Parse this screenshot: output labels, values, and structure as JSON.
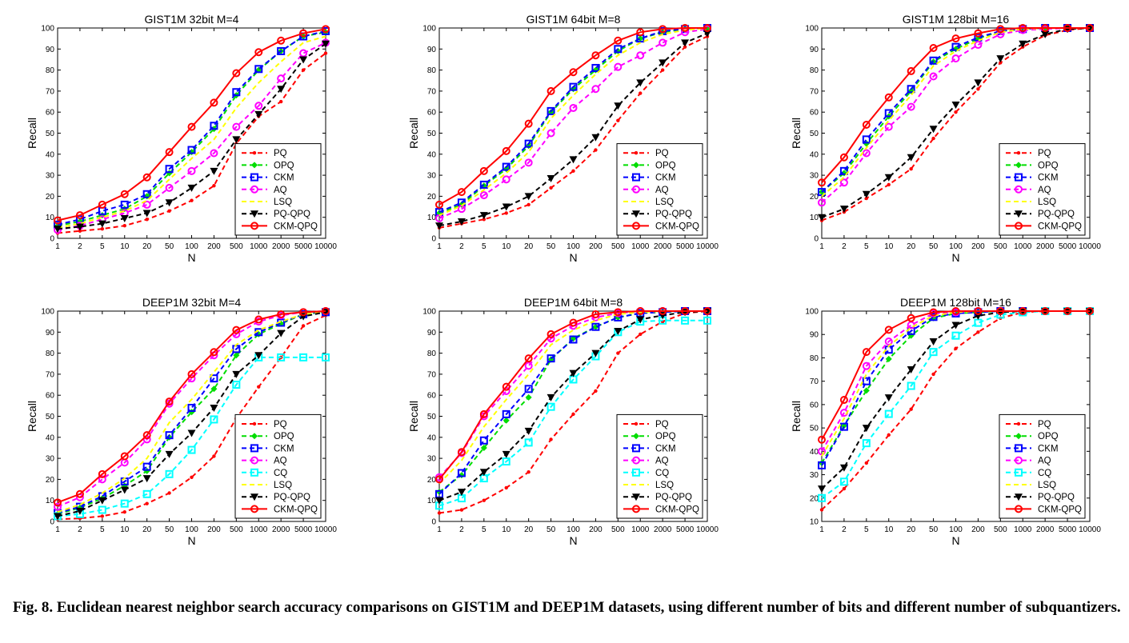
{
  "figure": {
    "caption": "Fig. 8. Euclidean nearest neighbor search accuracy comparisons on GIST1M and DEEP1M datasets, using different number of bits and different number of subquantizers."
  },
  "series_styles": {
    "PQ": {
      "color": "#ff0000",
      "marker": "dot",
      "dash": true
    },
    "OPQ": {
      "color": "#00dd00",
      "marker": "diamond",
      "dash": true
    },
    "CKM": {
      "color": "#0000ff",
      "marker": "square",
      "dash": true
    },
    "AQ": {
      "color": "#ff00ff",
      "marker": "circle",
      "dash": true
    },
    "CQ": {
      "color": "#00ffff",
      "marker": "square",
      "dash": true
    },
    "LSQ": {
      "color": "#ffff00",
      "marker": "none",
      "dash": true
    },
    "PQ-QPQ": {
      "color": "#000000",
      "marker": "triangle-down",
      "dash": true
    },
    "CKM-QPQ": {
      "color": "#ff0000",
      "marker": "circle",
      "dash": false
    }
  },
  "chart_data": [
    {
      "type": "line",
      "title": "GIST1M 32bit M=4",
      "xlabel": "N",
      "ylabel": "Recall",
      "ylim": [
        0,
        100
      ],
      "yticks": [
        "0",
        "10",
        "20",
        "30",
        "40",
        "50",
        "60",
        "70",
        "80",
        "90",
        "100"
      ],
      "x": [
        "1",
        "2",
        "5",
        "10",
        "20",
        "50",
        "100",
        "200",
        "500",
        "1000",
        "2000",
        "5000",
        "10000"
      ],
      "legend": "bottom-right",
      "series": [
        {
          "name": "PQ",
          "values": [
            2.5,
            3.5,
            4.5,
            6,
            9,
            13,
            18,
            25,
            45,
            58,
            65,
            80,
            88
          ]
        },
        {
          "name": "OPQ",
          "values": [
            6,
            8,
            11,
            14,
            20,
            31,
            41,
            52,
            68,
            80,
            89,
            96,
            98
          ]
        },
        {
          "name": "CKM",
          "values": [
            6.5,
            9,
            13,
            16,
            21,
            33,
            42,
            53.5,
            69.5,
            80.5,
            89,
            96,
            98.5
          ]
        },
        {
          "name": "AQ",
          "values": [
            4,
            6,
            9,
            12,
            16,
            24,
            32,
            40.5,
            53,
            63,
            76,
            88,
            93
          ]
        },
        {
          "name": "LSQ",
          "values": [
            5,
            7,
            10,
            13,
            18,
            28,
            38,
            47,
            62,
            74,
            84,
            93,
            96
          ]
        },
        {
          "name": "PQ-QPQ",
          "values": [
            4.5,
            5.5,
            7,
            9.5,
            12,
            17,
            24,
            32,
            47,
            59,
            71,
            85,
            92.5
          ]
        },
        {
          "name": "CKM-QPQ",
          "values": [
            8.5,
            11,
            16,
            21,
            29,
            41,
            53,
            64.5,
            78.5,
            88.5,
            94,
            97.5,
            99.5
          ]
        }
      ]
    },
    {
      "type": "line",
      "title": "GIST1M 64bit M=8",
      "xlabel": "N",
      "ylabel": "Recall",
      "ylim": [
        0,
        100
      ],
      "yticks": [
        "0",
        "10",
        "20",
        "30",
        "40",
        "50",
        "60",
        "70",
        "80",
        "90",
        "100"
      ],
      "x": [
        "1",
        "2",
        "5",
        "10",
        "20",
        "50",
        "100",
        "200",
        "500",
        "1000",
        "2000",
        "5000",
        "10000"
      ],
      "legend": "bottom-right",
      "series": [
        {
          "name": "PQ",
          "values": [
            5,
            7,
            9,
            12,
            16,
            24,
            32,
            42,
            56,
            69,
            80,
            91,
            96
          ]
        },
        {
          "name": "OPQ",
          "values": [
            12,
            16,
            25,
            33,
            44,
            60,
            71,
            80,
            89,
            95,
            98,
            99.5,
            100
          ]
        },
        {
          "name": "CKM",
          "values": [
            12.5,
            17,
            25.5,
            34,
            45,
            60.5,
            72,
            81,
            90,
            95,
            98.5,
            99.5,
            100
          ]
        },
        {
          "name": "AQ",
          "values": [
            9.5,
            14,
            20.5,
            28,
            36,
            50,
            62,
            71,
            81.5,
            87,
            93,
            98,
            99.5
          ]
        },
        {
          "name": "LSQ",
          "values": [
            11,
            15.5,
            23,
            31,
            41,
            57,
            68,
            78,
            87,
            93,
            97,
            99,
            100
          ]
        },
        {
          "name": "PQ-QPQ",
          "values": [
            6,
            8,
            11,
            15,
            20,
            28.5,
            37.5,
            48,
            63,
            74,
            83.5,
            93,
            97.5
          ]
        },
        {
          "name": "CKM-QPQ",
          "values": [
            16,
            22,
            32,
            41.5,
            54.5,
            70,
            79,
            87,
            94,
            98,
            99.5,
            100,
            100
          ]
        }
      ]
    },
    {
      "type": "line",
      "title": "GIST1M 128bit M=16",
      "xlabel": "N",
      "ylabel": "Recall",
      "ylim": [
        0,
        100
      ],
      "yticks": [
        "0",
        "10",
        "20",
        "30",
        "40",
        "50",
        "60",
        "70",
        "80",
        "90",
        "100"
      ],
      "x": [
        "1",
        "2",
        "5",
        "10",
        "20",
        "50",
        "100",
        "200",
        "500",
        "1000",
        "2000",
        "5000",
        "10000"
      ],
      "legend": "bottom-right",
      "series": [
        {
          "name": "PQ",
          "values": [
            8.5,
            12.5,
            19,
            25.5,
            33,
            47.5,
            60,
            71,
            83.5,
            91,
            96.5,
            99,
            100
          ]
        },
        {
          "name": "OPQ",
          "values": [
            22,
            31,
            45,
            58,
            70,
            84,
            90,
            95,
            98.5,
            99.5,
            100,
            100,
            100
          ]
        },
        {
          "name": "CKM",
          "values": [
            22,
            32,
            47,
            59.5,
            71,
            84.5,
            91,
            95.5,
            98.5,
            99.5,
            100,
            100,
            100
          ]
        },
        {
          "name": "AQ",
          "values": [
            17,
            26.5,
            40.5,
            53,
            62.5,
            77,
            85.5,
            92,
            97,
            99,
            99.5,
            100,
            100
          ]
        },
        {
          "name": "LSQ",
          "values": [
            20,
            29,
            43,
            56,
            68,
            82,
            89,
            94,
            98,
            99.5,
            100,
            100,
            100
          ]
        },
        {
          "name": "PQ-QPQ",
          "values": [
            10,
            14,
            21,
            29,
            38.5,
            52,
            63.5,
            74,
            85.5,
            92.5,
            97,
            99.5,
            100
          ]
        },
        {
          "name": "CKM-QPQ",
          "values": [
            26.5,
            38.5,
            54,
            67,
            79.5,
            90.5,
            95,
            97.5,
            99.5,
            100,
            100,
            100,
            100
          ]
        }
      ]
    },
    {
      "type": "line",
      "title": "DEEP1M 32bit M=4",
      "xlabel": "N",
      "ylabel": "Recall",
      "ylim": [
        0,
        100
      ],
      "yticks": [
        "0",
        "10",
        "20",
        "30",
        "40",
        "50",
        "60",
        "70",
        "80",
        "90",
        "100"
      ],
      "x": [
        "1",
        "2",
        "5",
        "10",
        "20",
        "50",
        "100",
        "200",
        "500",
        "1000",
        "2000",
        "5000",
        "10000"
      ],
      "legend": "bottom-right",
      "series": [
        {
          "name": "PQ",
          "values": [
            1,
            1.5,
            2.5,
            4.5,
            8.5,
            13.5,
            21,
            31,
            49,
            64,
            78,
            93,
            98
          ]
        },
        {
          "name": "OPQ",
          "values": [
            3.5,
            6.5,
            11,
            17,
            24,
            40,
            52,
            63,
            79,
            89,
            94,
            98.5,
            99.5
          ]
        },
        {
          "name": "CKM",
          "values": [
            4,
            7,
            12,
            19,
            26,
            41,
            54,
            68,
            82,
            90,
            94.5,
            98.5,
            99.5
          ]
        },
        {
          "name": "AQ",
          "values": [
            7,
            11.5,
            20,
            28,
            39,
            56,
            68,
            79,
            89,
            95,
            98,
            99.5,
            100
          ]
        },
        {
          "name": "CQ",
          "values": [
            2.5,
            3.5,
            5.5,
            8.5,
            13,
            22.5,
            34,
            48.5,
            65,
            78,
            78,
            78,
            78
          ]
        },
        {
          "name": "LSQ",
          "values": [
            4.5,
            8,
            13.5,
            20.5,
            30,
            47,
            58,
            71,
            84,
            91,
            95,
            98.5,
            99.5
          ]
        },
        {
          "name": "PQ-QPQ",
          "values": [
            2.5,
            5,
            10,
            15,
            20.5,
            32,
            42,
            54,
            70,
            79,
            89.5,
            97.5,
            99.5
          ]
        },
        {
          "name": "CKM-QPQ",
          "values": [
            9,
            13,
            22.5,
            31,
            41,
            57,
            70,
            80.5,
            91,
            96,
            98.5,
            99.5,
            100
          ]
        }
      ]
    },
    {
      "type": "line",
      "title": "DEEP1M 64bit M=8",
      "xlabel": "N",
      "ylabel": "Recall",
      "ylim": [
        0,
        100
      ],
      "yticks": [
        "0",
        "10",
        "20",
        "30",
        "40",
        "50",
        "60",
        "70",
        "80",
        "90",
        "100"
      ],
      "x": [
        "1",
        "2",
        "5",
        "10",
        "20",
        "50",
        "100",
        "200",
        "500",
        "1000",
        "2000",
        "5000",
        "10000"
      ],
      "legend": "bottom-right",
      "series": [
        {
          "name": "PQ",
          "values": [
            4,
            5.5,
            10,
            16,
            23.5,
            39,
            51,
            62,
            80,
            89,
            95,
            99,
            100
          ]
        },
        {
          "name": "OPQ",
          "values": [
            14,
            22,
            35,
            48,
            59,
            77,
            87,
            92.5,
            97,
            99,
            99.5,
            100,
            100
          ]
        },
        {
          "name": "CKM",
          "values": [
            13,
            23,
            38.5,
            51,
            63,
            77.5,
            86.5,
            92.5,
            97,
            99,
            99.5,
            100,
            100
          ]
        },
        {
          "name": "AQ",
          "values": [
            21,
            32.5,
            50,
            62,
            74,
            87,
            93,
            97,
            99,
            100,
            100,
            100,
            100
          ]
        },
        {
          "name": "CQ",
          "values": [
            7.5,
            11,
            20.5,
            28.5,
            37.5,
            54.5,
            67.5,
            78.5,
            90,
            95,
            95.5,
            95.5,
            95.5
          ]
        },
        {
          "name": "LSQ",
          "values": [
            18,
            29,
            45,
            58,
            70,
            84,
            91,
            95.5,
            98.5,
            99.5,
            100,
            100,
            100
          ]
        },
        {
          "name": "PQ-QPQ",
          "values": [
            10,
            14,
            23.5,
            32,
            43,
            59,
            70.5,
            80,
            90.5,
            96,
            98,
            99.5,
            100
          ]
        },
        {
          "name": "CKM-QPQ",
          "values": [
            20,
            33,
            51,
            64,
            77.5,
            89,
            94.5,
            98.5,
            99.5,
            100,
            100,
            100,
            100
          ]
        }
      ]
    },
    {
      "type": "line",
      "title": "DEEP1M 128bit M=16",
      "xlabel": "N",
      "ylabel": "Recall",
      "ylim": [
        10,
        100
      ],
      "yticks": [
        "10",
        "20",
        "30",
        "40",
        "50",
        "60",
        "70",
        "80",
        "90",
        "100"
      ],
      "x": [
        "1",
        "2",
        "5",
        "10",
        "20",
        "50",
        "100",
        "200",
        "500",
        "1000",
        "2000",
        "5000",
        "10000"
      ],
      "legend": "bottom-right",
      "series": [
        {
          "name": "PQ",
          "values": [
            15,
            24,
            35,
            47,
            58,
            73,
            84,
            91,
            97,
            99.5,
            100,
            100,
            100
          ]
        },
        {
          "name": "OPQ",
          "values": [
            35,
            51,
            66,
            79.5,
            89.5,
            97,
            99,
            99.5,
            100,
            100,
            100,
            100,
            100
          ]
        },
        {
          "name": "CKM",
          "values": [
            34,
            50.5,
            70,
            83.5,
            91.5,
            97.5,
            99,
            99.5,
            100,
            100,
            100,
            100,
            100
          ]
        },
        {
          "name": "AQ",
          "values": [
            40,
            56.5,
            76.5,
            87,
            94,
            99,
            99.5,
            100,
            100,
            100,
            100,
            100,
            100
          ]
        },
        {
          "name": "CQ",
          "values": [
            20,
            27,
            43.5,
            56,
            68,
            82.5,
            89.5,
            95,
            98.5,
            99.5,
            100,
            100,
            100
          ]
        },
        {
          "name": "LSQ",
          "values": [
            38,
            54,
            73,
            85,
            93,
            98,
            99.5,
            100,
            100,
            100,
            100,
            100,
            100
          ]
        },
        {
          "name": "PQ-QPQ",
          "values": [
            24,
            33,
            50,
            63,
            75,
            87,
            94,
            98,
            99.5,
            100,
            100,
            100,
            100
          ]
        },
        {
          "name": "CKM-QPQ",
          "values": [
            45,
            62,
            82.5,
            92,
            97,
            99.5,
            100,
            100,
            100,
            100,
            100,
            100,
            100
          ]
        }
      ]
    }
  ]
}
